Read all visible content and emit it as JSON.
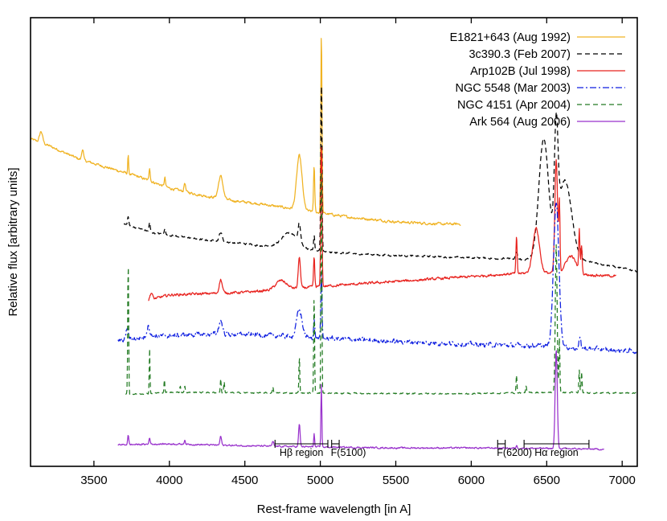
{
  "chart_data": {
    "type": "line",
    "xlabel": "Rest-frame wavelength [in A]",
    "ylabel": "Relative flux [arbitrary units]",
    "xlim": [
      3080,
      7100
    ],
    "ylim": [
      0,
      100
    ],
    "x_ticks": [
      3500,
      4000,
      4500,
      5000,
      5500,
      6000,
      6500,
      7000
    ],
    "y_ticks_shown": false,
    "grid": false,
    "legend_position": "top-right",
    "series": [
      {
        "name": "E1821+643 (Aug 1992)",
        "color": "#f0b323",
        "dash": "solid",
        "x_range": [
          3080,
          5930
        ],
        "continuum": [
          [
            3080,
            73
          ],
          [
            3200,
            71.5
          ],
          [
            3400,
            68.5
          ],
          [
            3600,
            66.5
          ],
          [
            3800,
            64.5
          ],
          [
            4000,
            62
          ],
          [
            4200,
            60.5
          ],
          [
            4400,
            59.3
          ],
          [
            4600,
            58.5
          ],
          [
            4800,
            57.5
          ],
          [
            5000,
            56.5
          ],
          [
            5200,
            55.5
          ],
          [
            5500,
            54.5
          ],
          [
            5800,
            54
          ],
          [
            5930,
            54
          ]
        ],
        "lines": [
          [
            3150,
            2.5,
            10
          ],
          [
            3425,
            2.5,
            6
          ],
          [
            3727,
            4,
            3
          ],
          [
            3869,
            3,
            4
          ],
          [
            3970,
            2,
            4
          ],
          [
            4102,
            2,
            5
          ],
          [
            4340,
            5,
            15
          ],
          [
            4861,
            12,
            18
          ],
          [
            4959,
            10,
            4
          ],
          [
            5007,
            40,
            4
          ]
        ],
        "noise": 0.5
      },
      {
        "name": "3c390.3 (Feb 2007)",
        "color": "#000000",
        "dash": "6,4",
        "x_range": [
          3700,
          7100
        ],
        "continuum": [
          [
            3700,
            54
          ],
          [
            3900,
            52
          ],
          [
            4200,
            50.6
          ],
          [
            4500,
            49.6
          ],
          [
            4800,
            48.5
          ],
          [
            5100,
            47.6
          ],
          [
            5500,
            47
          ],
          [
            6000,
            46.5
          ],
          [
            6200,
            46.3
          ],
          [
            6800,
            45.5
          ],
          [
            7100,
            43.5
          ]
        ],
        "lines": [
          [
            3727,
            2,
            4
          ],
          [
            3869,
            2,
            4
          ],
          [
            3970,
            1.5,
            4
          ],
          [
            4340,
            2,
            10
          ],
          [
            4800,
            3.5,
            55
          ],
          [
            4861,
            4,
            8
          ],
          [
            4959,
            3.5,
            4
          ],
          [
            5007,
            38,
            4
          ],
          [
            6300,
            1.5,
            6
          ],
          [
            6480,
            27,
            32
          ],
          [
            6563,
            24,
            12
          ],
          [
            6620,
            18,
            45
          ],
          [
            6730,
            2,
            5
          ]
        ],
        "noise": 0.35
      },
      {
        "name": "Arp102B (Jul 1998)",
        "color": "#e8231f",
        "dash": "solid",
        "x_range": [
          3860,
          6960
        ],
        "continuum": [
          [
            3860,
            37
          ],
          [
            4000,
            38.2
          ],
          [
            4500,
            38.8
          ],
          [
            5000,
            40.1
          ],
          [
            5500,
            41.2
          ],
          [
            6000,
            42.3
          ],
          [
            6300,
            43
          ],
          [
            6500,
            43.1
          ],
          [
            6960,
            42.4
          ]
        ],
        "lines": [
          [
            3880,
            1.5,
            8
          ],
          [
            4340,
            3,
            10
          ],
          [
            4740,
            2,
            35
          ],
          [
            4861,
            7,
            7
          ],
          [
            4959,
            6.5,
            4
          ],
          [
            5007,
            32,
            4
          ],
          [
            6300,
            8,
            4
          ],
          [
            6430,
            10,
            22
          ],
          [
            6563,
            25,
            9
          ],
          [
            6584,
            15,
            4
          ],
          [
            6660,
            4,
            35
          ],
          [
            6716,
            9,
            4
          ],
          [
            6731,
            6,
            4
          ]
        ],
        "noise": 0.5
      },
      {
        "name": "NGC 5548 (Mar 2003)",
        "color": "#0f1fe0",
        "dash": "8,3,2,3",
        "x_range": [
          3660,
          7100
        ],
        "continuum": [
          [
            3660,
            28
          ],
          [
            3900,
            29
          ],
          [
            4300,
            29.5
          ],
          [
            4600,
            29.3
          ],
          [
            5000,
            28.6
          ],
          [
            5500,
            27.8
          ],
          [
            6000,
            27.2
          ],
          [
            6500,
            26.8
          ],
          [
            7000,
            25.8
          ],
          [
            7100,
            25.6
          ]
        ],
        "lines": [
          [
            3720,
            2.5,
            8
          ],
          [
            3860,
            2.5,
            10
          ],
          [
            4340,
            3,
            12
          ],
          [
            4861,
            6,
            18
          ],
          [
            4959,
            4,
            4
          ],
          [
            5007,
            14,
            4
          ],
          [
            6563,
            32,
            18
          ],
          [
            6720,
            2,
            6
          ]
        ],
        "noise": 0.9
      },
      {
        "name": "NGC 4151 (Apr 2004)",
        "color": "#237b23",
        "dash": "6,4",
        "x_range": [
          3710,
          7100
        ],
        "continuum": [
          [
            3710,
            16
          ],
          [
            4000,
            16.5
          ],
          [
            4500,
            16.4
          ],
          [
            5000,
            16.3
          ],
          [
            5500,
            16.2
          ],
          [
            6000,
            16.2
          ],
          [
            6500,
            16.5
          ],
          [
            7100,
            16.3
          ]
        ],
        "lines": [
          [
            3727,
            30,
            3
          ],
          [
            3869,
            10,
            2.5
          ],
          [
            3967,
            3,
            2.5
          ],
          [
            4072,
            1.5,
            3
          ],
          [
            4102,
            1.5,
            3
          ],
          [
            4340,
            3,
            3
          ],
          [
            4363,
            2.5,
            3
          ],
          [
            4686,
            1.5,
            3
          ],
          [
            4861,
            8,
            3
          ],
          [
            4959,
            22,
            3
          ],
          [
            5007,
            52,
            3
          ],
          [
            6300,
            4,
            3
          ],
          [
            6363,
            1.5,
            3
          ],
          [
            6563,
            33,
            6
          ],
          [
            6584,
            12,
            3
          ],
          [
            6716,
            5,
            3
          ],
          [
            6731,
            4.5,
            3
          ]
        ],
        "noise": 0.25
      },
      {
        "name": "Ark 564 (Aug 2006)",
        "color": "#9932cc",
        "dash": "solid",
        "x_range": [
          3660,
          6880
        ],
        "continuum": [
          [
            3660,
            4.8
          ],
          [
            4000,
            5
          ],
          [
            4500,
            4.6
          ],
          [
            5000,
            4.3
          ],
          [
            5500,
            4.1
          ],
          [
            6000,
            4.1
          ],
          [
            6500,
            4
          ],
          [
            6880,
            3.8
          ]
        ],
        "lines": [
          [
            3727,
            2,
            4
          ],
          [
            3869,
            1.5,
            4
          ],
          [
            4102,
            1,
            4
          ],
          [
            4340,
            2,
            5
          ],
          [
            4686,
            1,
            5
          ],
          [
            4861,
            5,
            5
          ],
          [
            4959,
            3,
            3
          ],
          [
            5007,
            14,
            3
          ],
          [
            6563,
            22,
            7
          ],
          [
            6300,
            0.6,
            4
          ]
        ],
        "noise": 0.3
      }
    ],
    "regions": [
      {
        "label": "Hβ region",
        "x0": 4700,
        "x1": 5050
      },
      {
        "label": "F(5100)",
        "x0": 5075,
        "x1": 5125
      },
      {
        "label": "F(6200)",
        "x0": 6175,
        "x1": 6225
      },
      {
        "label": "Hα region",
        "x0": 6350,
        "x1": 6780
      }
    ]
  }
}
